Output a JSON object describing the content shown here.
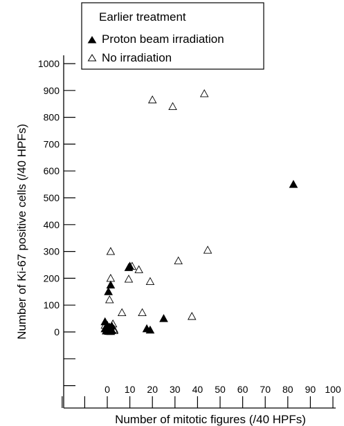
{
  "chart_data": {
    "type": "scatter",
    "title": "",
    "xlabel": "Number of mitotic figures (/40 HPFs)",
    "ylabel": "Number of Ki-67 positive cells (/40 HPFs)",
    "x_ticks": [
      "0",
      "10",
      "20",
      "30",
      "40",
      "50",
      "60",
      "70",
      "80",
      "90",
      "100"
    ],
    "y_ticks": [
      "0",
      "100",
      "200",
      "300",
      "400",
      "500",
      "600",
      "700",
      "800",
      "900",
      "1000"
    ],
    "xlim": [
      -10,
      100
    ],
    "ylim": [
      -300,
      1000
    ],
    "grid": false,
    "legend": {
      "placement": "top-left",
      "title": "Earlier treatment"
    },
    "series": [
      {
        "name": "Proton beam irradiation",
        "marker": "filled-triangle",
        "color": "#000000",
        "points": [
          [
            -1,
            38
          ],
          [
            -1,
            12
          ],
          [
            -0.5,
            4
          ],
          [
            0,
            25
          ],
          [
            0.5,
            8
          ],
          [
            0.5,
            150
          ],
          [
            1,
            18
          ],
          [
            1.5,
            2
          ],
          [
            1.5,
            175
          ],
          [
            2,
            22
          ],
          [
            2,
            6
          ],
          [
            9.5,
            240
          ],
          [
            10,
            245
          ],
          [
            17.5,
            12
          ],
          [
            19,
            7
          ],
          [
            25,
            50
          ],
          [
            82.5,
            550
          ]
        ]
      },
      {
        "name": "No irradiation",
        "marker": "open-triangle",
        "color": "#000000",
        "points": [
          [
            -1,
            25
          ],
          [
            0,
            10
          ],
          [
            0.5,
            2
          ],
          [
            1,
            120
          ],
          [
            1.5,
            300
          ],
          [
            1.5,
            200
          ],
          [
            1.5,
            15
          ],
          [
            2.5,
            30
          ],
          [
            3,
            5
          ],
          [
            3,
            10
          ],
          [
            6.5,
            72
          ],
          [
            9.5,
            197
          ],
          [
            11,
            245
          ],
          [
            14,
            232
          ],
          [
            15.5,
            72
          ],
          [
            19,
            188
          ],
          [
            20,
            865
          ],
          [
            29,
            840
          ],
          [
            31.5,
            265
          ],
          [
            37.5,
            58
          ],
          [
            43,
            888
          ],
          [
            44.5,
            305
          ]
        ]
      }
    ]
  }
}
